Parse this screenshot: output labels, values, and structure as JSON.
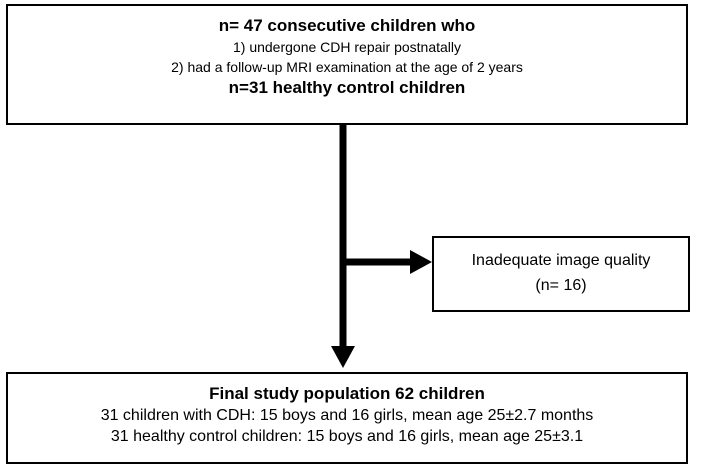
{
  "top_box": {
    "title": "n= 47 consecutive children who",
    "criteria": [
      "1)  undergone CDH repair postnatally",
      "2)  had a follow-up MRI examination at the age of 2 years"
    ],
    "controls": "n=31 healthy control children"
  },
  "exclusion_box": {
    "line1": "Inadequate image quality",
    "line2": "(n= 16)"
  },
  "final_box": {
    "title": "Final study population 62 children",
    "line1": "31 children with CDH: 15 boys and 16 girls, mean age 25±2.7 months",
    "line2": "31 healthy control children: 15 boys and 16 girls, mean age 25±3.1"
  },
  "colors": {
    "line": "#000000",
    "border": "#000000",
    "background": "#ffffff"
  }
}
